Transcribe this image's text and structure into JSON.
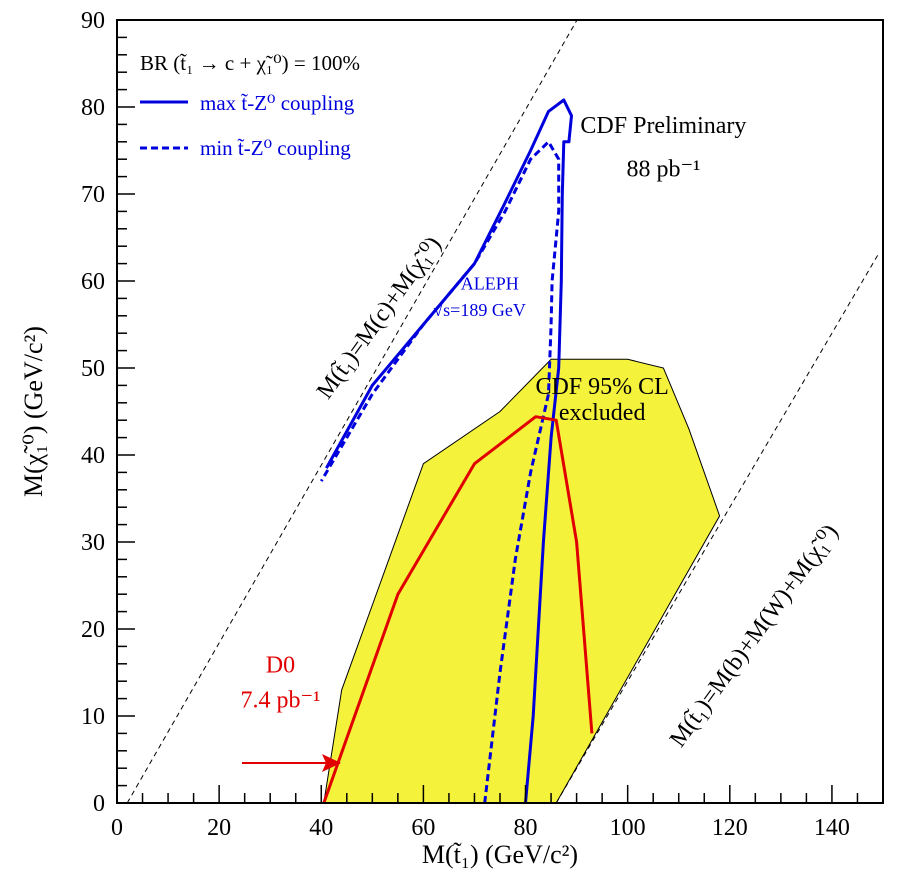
{
  "chart_data": {
    "type": "line",
    "xlabel": "M(t̃₁) (GeV/c²)",
    "ylabel": "M(χ̃₁⁰) (GeV/c²)",
    "xlim": [
      0,
      150
    ],
    "ylim": [
      0,
      90
    ],
    "x_ticks": [
      "0",
      "20",
      "40",
      "60",
      "80",
      "100",
      "120",
      "140"
    ],
    "y_ticks": [
      "0",
      "10",
      "20",
      "30",
      "40",
      "50",
      "60",
      "70",
      "80",
      "90"
    ],
    "x_tick_values": [
      0,
      20,
      40,
      60,
      80,
      100,
      120,
      140
    ],
    "y_tick_values": [
      0,
      10,
      20,
      30,
      40,
      50,
      60,
      70,
      80,
      90
    ],
    "grid": false,
    "legend": {
      "placement": "top-left",
      "header": "BR (t̃₁ → c + χ̃₁⁰) = 100%",
      "entries": [
        "max t̃-Z⁰ coupling",
        "min t̃-Z⁰ coupling"
      ]
    },
    "colors": {
      "cdf_fill": "#f5f23c",
      "aleph": "#0000dd",
      "d0": "#e00000",
      "reference": "#000000"
    },
    "series": [
      {
        "name": "CDF 95% CL excluded",
        "kind": "filled-region",
        "points": [
          [
            40.5,
            0
          ],
          [
            44,
            13
          ],
          [
            60,
            39
          ],
          [
            75,
            45
          ],
          [
            85,
            51
          ],
          [
            100,
            51
          ],
          [
            107,
            50
          ],
          [
            112,
            43
          ],
          [
            118,
            33
          ],
          [
            86,
            0
          ]
        ]
      },
      {
        "name": "max t̃-Z⁰ coupling",
        "kind": "solid",
        "points": [
          [
            80,
            0
          ],
          [
            81.5,
            10
          ],
          [
            83.5,
            30
          ],
          [
            85,
            42
          ],
          [
            86.5,
            50
          ],
          [
            87,
            60
          ],
          [
            87.2,
            70
          ],
          [
            87.5,
            76
          ],
          [
            88.5,
            76
          ],
          [
            89,
            79
          ],
          [
            87.5,
            80.8
          ],
          [
            84.5,
            79.5
          ],
          [
            81,
            75
          ],
          [
            76,
            69
          ],
          [
            70,
            62
          ],
          [
            60,
            55
          ],
          [
            50,
            48
          ],
          [
            41,
            38.5
          ]
        ]
      },
      {
        "name": "min t̃-Z⁰ coupling",
        "kind": "dashed",
        "points": [
          [
            72,
            0
          ],
          [
            75,
            15
          ],
          [
            78,
            28
          ],
          [
            81,
            38
          ],
          [
            84.5,
            47
          ],
          [
            85,
            55
          ],
          [
            85.2,
            60
          ],
          [
            86.5,
            68
          ],
          [
            86.5,
            74
          ],
          [
            84.5,
            76
          ],
          [
            81,
            74
          ],
          [
            76,
            68
          ],
          [
            70,
            62
          ],
          [
            60,
            55
          ],
          [
            50,
            47
          ],
          [
            40,
            37
          ]
        ]
      },
      {
        "name": "D0 7.4 pb⁻¹",
        "kind": "solid",
        "points": [
          [
            40.5,
            0
          ],
          [
            55,
            24
          ],
          [
            70,
            39
          ],
          [
            82,
            44.4
          ],
          [
            86,
            44
          ],
          [
            90,
            30
          ],
          [
            93,
            8
          ]
        ]
      }
    ],
    "reference_lines": [
      {
        "label": "M(t̃₁)=M(c)+M(χ̃₁⁰)",
        "points": [
          [
            2,
            0
          ],
          [
            94,
            94
          ]
        ]
      },
      {
        "label": "M(t̃₁)=M(b)+M(W)+M(χ̃₁⁰)",
        "points": [
          [
            86,
            0
          ],
          [
            149,
            63
          ]
        ]
      }
    ],
    "annotations": [
      {
        "text": "CDF Preliminary",
        "x": 107,
        "y": 77
      },
      {
        "text": "88 pb⁻¹",
        "x": 107,
        "y": 72
      },
      {
        "text": "ALEPH",
        "x": 73,
        "y": 59
      },
      {
        "text": "√s=189 GeV",
        "x": 71,
        "y": 56
      },
      {
        "text": "CDF 95% CL",
        "x": 95,
        "y": 47
      },
      {
        "text": "excluded",
        "x": 95,
        "y": 44
      },
      {
        "text": "D0",
        "x": 32,
        "y": 15
      },
      {
        "text": "7.4 pb⁻¹",
        "x": 32,
        "y": 11
      }
    ]
  }
}
